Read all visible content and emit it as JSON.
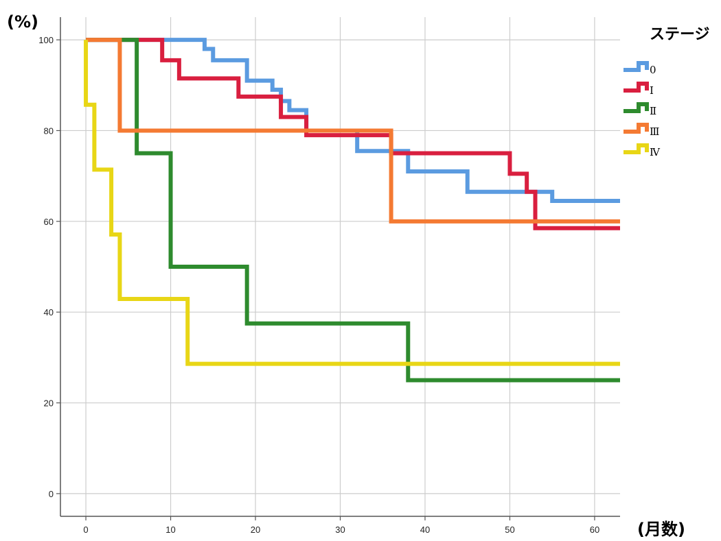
{
  "chart_data": {
    "type": "line",
    "step": true,
    "title": "",
    "ylabel": "(%)",
    "xlabel": "(月数)",
    "xlim": [
      -3,
      63
    ],
    "ylim": [
      -5,
      105
    ],
    "x_ticks": [
      0,
      10,
      20,
      30,
      40,
      50,
      60
    ],
    "y_ticks": [
      0,
      20,
      40,
      60,
      80,
      100
    ],
    "grid": true,
    "legend": {
      "title": "ステージ",
      "placement": "right"
    },
    "series": [
      {
        "name": "0",
        "color": "#5b9be0",
        "points": [
          [
            0,
            100
          ],
          [
            12.5,
            100
          ],
          [
            14,
            98
          ],
          [
            15,
            95.5
          ],
          [
            19,
            91
          ],
          [
            22,
            89
          ],
          [
            23,
            86.5
          ],
          [
            24,
            84.5
          ],
          [
            26,
            80
          ],
          [
            32,
            75.5
          ],
          [
            38,
            71
          ],
          [
            45,
            66.5
          ],
          [
            55,
            64.5
          ],
          [
            63,
            64.5
          ]
        ]
      },
      {
        "name": "Ⅰ",
        "color": "#d91f3f",
        "points": [
          [
            0,
            100
          ],
          [
            9,
            100
          ],
          [
            9,
            95.5
          ],
          [
            11,
            91.5
          ],
          [
            18,
            87.5
          ],
          [
            23,
            83
          ],
          [
            26,
            79
          ],
          [
            36,
            75
          ],
          [
            50,
            75
          ],
          [
            50,
            70.5
          ],
          [
            52,
            66.5
          ],
          [
            53,
            58.5
          ],
          [
            63,
            58.5
          ]
        ]
      },
      {
        "name": "Ⅱ",
        "color": "#2e8b2e",
        "points": [
          [
            0,
            100
          ],
          [
            6,
            100
          ],
          [
            6,
            75
          ],
          [
            10,
            75
          ],
          [
            10,
            50
          ],
          [
            19,
            50
          ],
          [
            19,
            37.5
          ],
          [
            38,
            37.5
          ],
          [
            38,
            25
          ],
          [
            63,
            25
          ]
        ]
      },
      {
        "name": "Ⅲ",
        "color": "#f47a33",
        "points": [
          [
            0,
            100
          ],
          [
            4,
            100
          ],
          [
            4,
            80
          ],
          [
            36,
            80
          ],
          [
            36,
            60
          ],
          [
            63,
            60
          ]
        ]
      },
      {
        "name": "Ⅳ",
        "color": "#e8d616",
        "points": [
          [
            0,
            100
          ],
          [
            0,
            85.7
          ],
          [
            1,
            85.7
          ],
          [
            1,
            71.4
          ],
          [
            3,
            71.4
          ],
          [
            3,
            57.1
          ],
          [
            4,
            57.1
          ],
          [
            4,
            42.9
          ],
          [
            12,
            42.9
          ],
          [
            12,
            28.6
          ],
          [
            63,
            28.6
          ]
        ]
      }
    ]
  }
}
